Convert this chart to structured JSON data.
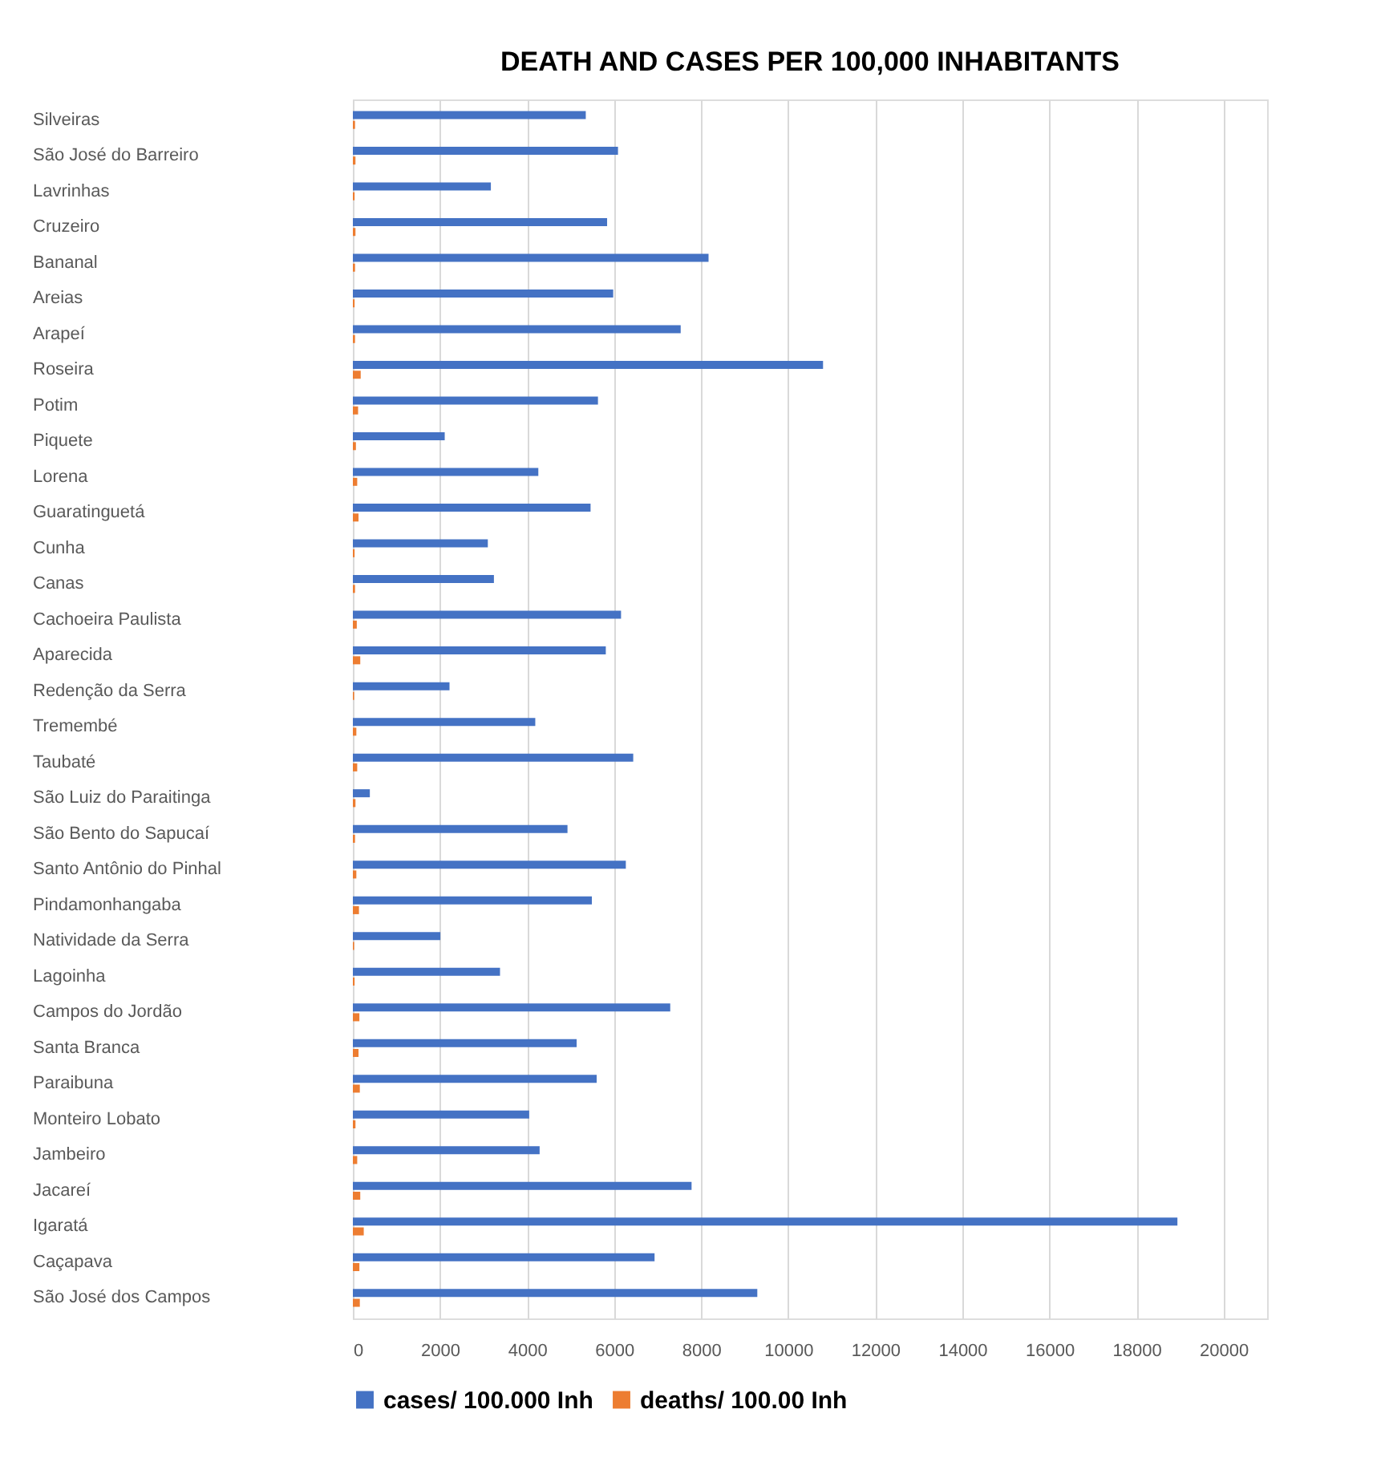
{
  "chart_data": {
    "type": "bar",
    "orientation": "horizontal",
    "title": "DEATH AND CASES PER 100,000 INHABITANTS",
    "categories": [
      "Silveiras",
      "São José do Barreiro",
      "Lavrinhas",
      "Cruzeiro",
      "Bananal",
      "Areias",
      "Arapeí",
      "Roseira",
      "Potim",
      "Piquete",
      "Lorena",
      "Guaratinguetá",
      "Cunha",
      "Canas",
      "Cachoeira Paulista",
      "Aparecida",
      "Redenção da Serra",
      "Tremembé",
      "Taubaté",
      "São Luiz do Paraitinga",
      "São Bento do Sapucaí",
      "Santo Antônio do Pinhal",
      "Pindamonhangaba",
      "Natividade da Serra",
      "Lagoinha",
      "Campos do Jordão",
      "Santa Branca",
      "Paraibuna",
      "Monteiro Lobato",
      "Jambeiro",
      "Jacareí",
      "Igaratá",
      "Caçapava",
      "São José dos Campos"
    ],
    "series": [
      {
        "name": "cases/ 100.000 Inh",
        "color": "#4472c4",
        "values": [
          5350,
          6090,
          3170,
          5840,
          8170,
          5980,
          7530,
          10800,
          5630,
          2110,
          4260,
          5460,
          3100,
          3240,
          6160,
          5810,
          2220,
          4190,
          6440,
          390,
          4930,
          6270,
          5490,
          2010,
          3380,
          7290,
          5140,
          5600,
          4050,
          4290,
          7780,
          18940,
          6930,
          9290
        ]
      },
      {
        "name": "deaths/ 100.00 Inh",
        "color": "#ed7d31",
        "values": [
          50,
          60,
          40,
          60,
          50,
          40,
          50,
          180,
          120,
          70,
          100,
          130,
          40,
          50,
          90,
          170,
          30,
          80,
          100,
          60,
          50,
          80,
          140,
          30,
          40,
          150,
          130,
          160,
          60,
          100,
          170,
          250,
          150,
          160
        ]
      }
    ],
    "xlim": [
      0,
      21000
    ],
    "xticks": [
      0,
      2000,
      4000,
      6000,
      8000,
      10000,
      12000,
      14000,
      16000,
      18000,
      20000
    ],
    "grid": "x",
    "legend": "bottom"
  }
}
